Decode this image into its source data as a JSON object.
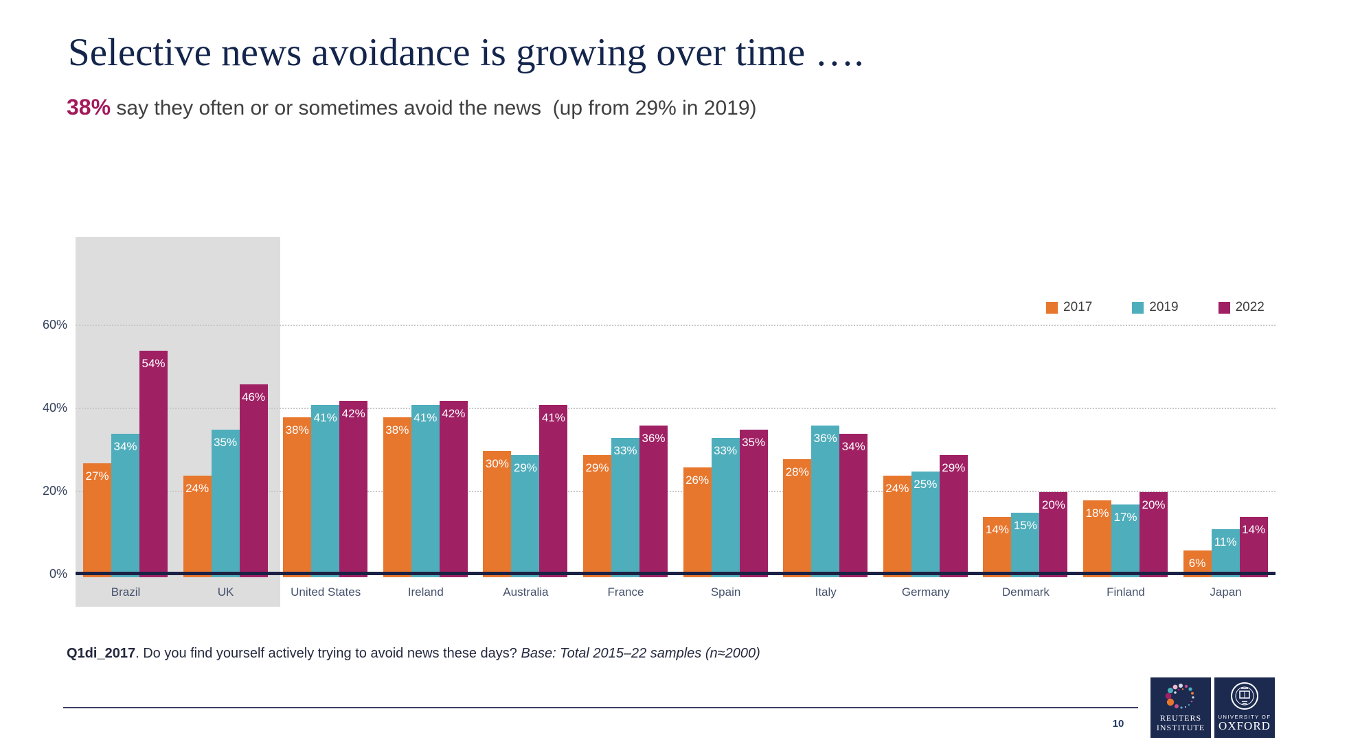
{
  "slide": {
    "title": "Selective news avoidance is growing over time ….",
    "subtitle_highlight": "38%",
    "subtitle_rest": " say they often or or sometimes avoid the news  (up from 29% in 2019)",
    "footnote_code": "Q1di_2017",
    "footnote_question": ". Do you find yourself actively trying to avoid news these days? ",
    "footnote_base": "Base: Total 2015–22 samples (n≈2000)",
    "page_number": "10",
    "logos": {
      "reuters_line1": "REUTERS",
      "reuters_line2": "INSTITUTE",
      "oxford_line1": "UNIVERSITY OF",
      "oxford_line2": "OXFORD"
    }
  },
  "colors": {
    "title_navy": "#14254C",
    "subtitle_highlight": "#A3195B",
    "axis_navy": "#1B2144",
    "highlight_gray": "#DDDDDD",
    "logo_navy": "#1C2A50"
  },
  "chart_data": {
    "type": "bar",
    "title": "",
    "xlabel": "",
    "ylabel": "",
    "value_suffix": "%",
    "ylim": [
      0,
      82
    ],
    "grid": "horizontal dotted lines at 20, 40, 60",
    "legend_position": "top-right",
    "highlighted_categories": [
      "Brazil",
      "UK"
    ],
    "categories": [
      "Brazil",
      "UK",
      "United States",
      "Ireland",
      "Australia",
      "France",
      "Spain",
      "Italy",
      "Germany",
      "Denmark",
      "Finland",
      "Japan"
    ],
    "series": [
      {
        "name": "2017",
        "color": "#E8772E",
        "values": [
          27,
          24,
          38,
          38,
          30,
          29,
          26,
          28,
          24,
          14,
          18,
          6
        ]
      },
      {
        "name": "2019",
        "color": "#4FAEBC",
        "values": [
          34,
          35,
          41,
          41,
          29,
          33,
          33,
          36,
          25,
          15,
          17,
          11
        ]
      },
      {
        "name": "2022",
        "color": "#A02064",
        "values": [
          54,
          46,
          42,
          42,
          41,
          36,
          35,
          34,
          29,
          20,
          20,
          14
        ]
      }
    ],
    "yticks": [
      {
        "label": "0%",
        "value": 0
      },
      {
        "label": "20%",
        "value": 20
      },
      {
        "label": "40%",
        "value": 40
      },
      {
        "label": "60%",
        "value": 60
      }
    ]
  }
}
